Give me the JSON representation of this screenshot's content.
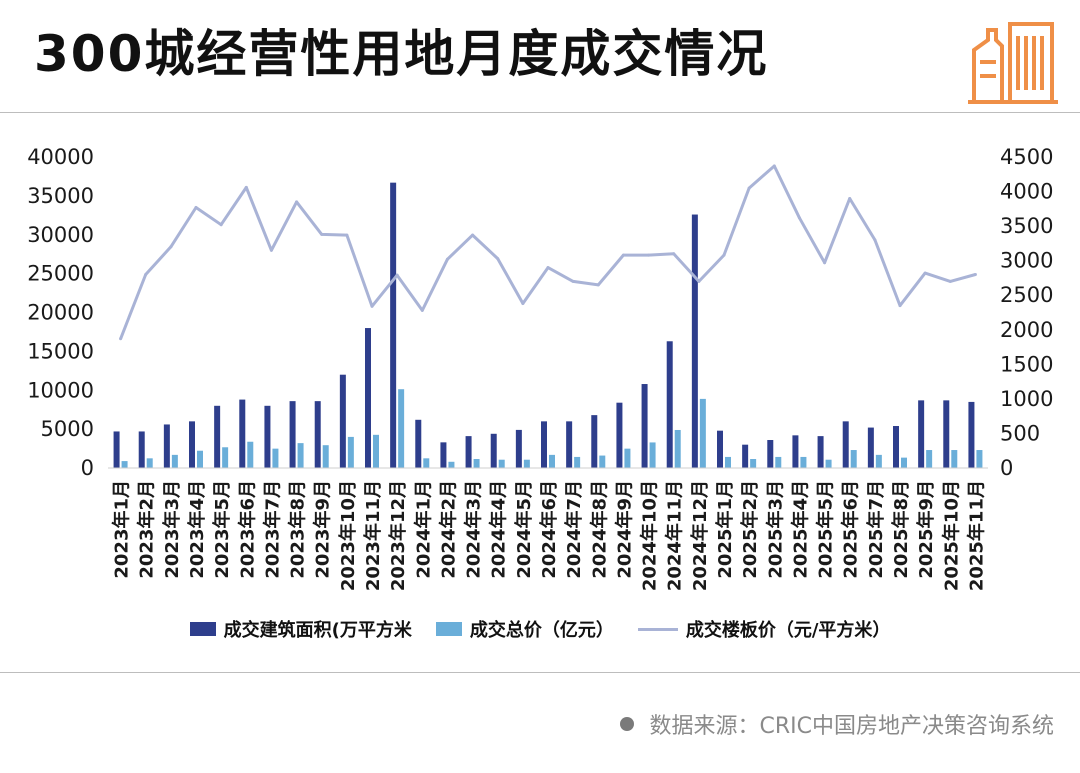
{
  "header": {
    "title": "300城经营性用地月度成交情况"
  },
  "icons": {
    "logo": "building-logo-icon"
  },
  "colors": {
    "area_bar": "#2e3e8c",
    "total_bar": "#6aaed9",
    "price_line": "#a9b3d6",
    "logo": "#ef8f47"
  },
  "legend": {
    "area_label": "成交建筑面积(万平方米",
    "total_label": "成交总价（亿元）",
    "price_label": "成交楼板价（元/平方米）"
  },
  "footer": {
    "source": "数据来源：CRIC中国房地产决策咨询系统"
  },
  "chart_data": {
    "type": "bar",
    "categories": [
      "2023年1月",
      "2023年2月",
      "2023年3月",
      "2023年4月",
      "2023年5月",
      "2023年6月",
      "2023年7月",
      "2023年8月",
      "2023年9月",
      "2023年10月",
      "2023年11月",
      "2023年12月",
      "2024年1月",
      "2024年2月",
      "2024年3月",
      "2024年4月",
      "2024年5月",
      "2024年6月",
      "2024年7月",
      "2024年8月",
      "2024年9月",
      "2024年10月",
      "2024年11月",
      "2024年12月",
      "2025年1月",
      "2025年2月",
      "2025年3月",
      "2025年4月",
      "2025年5月",
      "2025年6月",
      "2025年7月",
      "2025年8月",
      "2025年9月",
      "2025年10月",
      "2025年11月"
    ],
    "y_left": {
      "min": 0,
      "max": 40000,
      "ticks": [
        "0",
        "5000",
        "10000",
        "15000",
        "20000",
        "25000",
        "30000",
        "35000",
        "40000"
      ]
    },
    "y_right": {
      "min": 0,
      "max": 4500,
      "ticks": [
        "0",
        "500",
        "1000",
        "1500",
        "2000",
        "2500",
        "3000",
        "3500",
        "4000",
        "4500"
      ]
    },
    "series": [
      {
        "name": "成交建筑面积(万平方米",
        "type": "bar",
        "axis": "left",
        "values": [
          4700,
          4700,
          5600,
          6000,
          8000,
          8800,
          8000,
          8600,
          8600,
          12000,
          18000,
          36700,
          6200,
          3300,
          4100,
          4400,
          4900,
          6000,
          6000,
          6800,
          8400,
          10800,
          16300,
          32600,
          4800,
          3000,
          3600,
          4200,
          4100,
          6000,
          5200,
          5400,
          8700,
          8700,
          8500
        ]
      },
      {
        "name": "成交总价（亿元）",
        "type": "bar",
        "axis": "right",
        "values": [
          100,
          140,
          190,
          250,
          300,
          380,
          280,
          360,
          330,
          450,
          480,
          1140,
          140,
          90,
          130,
          120,
          120,
          190,
          160,
          180,
          280,
          370,
          550,
          1000,
          160,
          130,
          160,
          160,
          120,
          260,
          190,
          150,
          260,
          260,
          260
        ]
      },
      {
        "name": "成交楼板价（元/平方米）",
        "type": "line",
        "axis": "right",
        "values": [
          1870,
          2800,
          3200,
          3770,
          3520,
          4060,
          3150,
          3850,
          3380,
          3370,
          2340,
          2790,
          2280,
          3020,
          3370,
          3030,
          2380,
          2900,
          2700,
          2650,
          3080,
          3080,
          3100,
          2700,
          3080,
          4050,
          4370,
          3620,
          2970,
          3900,
          3300,
          2350,
          2820,
          2700,
          2800
        ]
      }
    ]
  }
}
